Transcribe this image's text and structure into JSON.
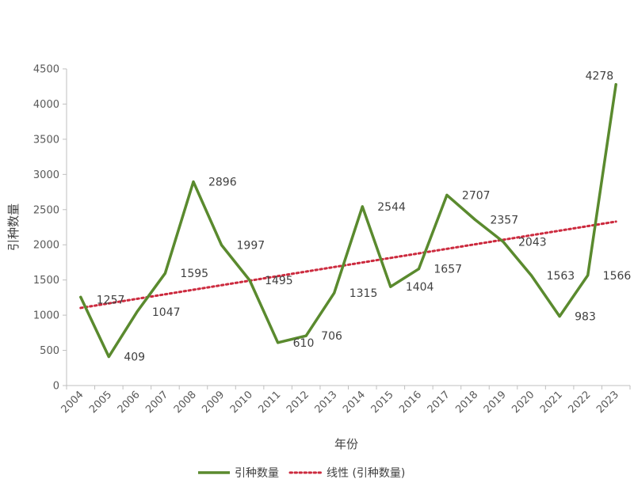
{
  "chart_data": {
    "type": "line",
    "xlabel": "年份",
    "ylabel": "引种数量",
    "ylim": [
      0,
      4500
    ],
    "yticks": [
      0,
      500,
      1000,
      1500,
      2000,
      2500,
      3000,
      3500,
      4000,
      4500
    ],
    "categories": [
      "2004",
      "2005",
      "2006",
      "2007",
      "2008",
      "2009",
      "2010",
      "2011",
      "2012",
      "2013",
      "2014",
      "2015",
      "2016",
      "2017",
      "2018",
      "2019",
      "2020",
      "2021",
      "2022",
      "2023"
    ],
    "series": [
      {
        "name": "引种数量",
        "color": "#5a8a2e",
        "values": [
          1257,
          409,
          1047,
          1595,
          2896,
          1997,
          1495,
          610,
          706,
          1315,
          2544,
          1404,
          1657,
          2707,
          2357,
          2043,
          1563,
          983,
          1566,
          4278
        ]
      }
    ],
    "trendline": {
      "name": "线性 (引种数量)",
      "type": "linear",
      "color": "#cc2a3e",
      "start": 1103,
      "end": 2330
    },
    "grid": false,
    "legend": "bottom"
  }
}
